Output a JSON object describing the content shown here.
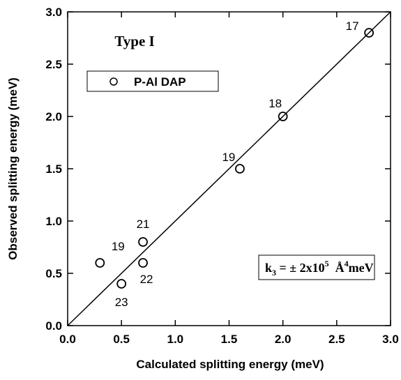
{
  "chart_data": {
    "type": "scatter",
    "x_label": "Calculated splitting energy (meV)",
    "y_label": "Observed splitting energy (meV)",
    "series": [
      {
        "name": "P-Al DAP",
        "color": "#000000",
        "x": [
          0.3,
          0.5,
          0.7,
          0.7,
          1.6,
          2.0,
          2.8
        ],
        "values": [
          0.6,
          0.4,
          0.8,
          0.6,
          1.5,
          2.0,
          2.8
        ],
        "point_labels": [
          "19",
          "23",
          "21",
          "22",
          "19",
          "18",
          "17"
        ]
      }
    ],
    "fit_line": {
      "x": [
        0,
        3
      ],
      "y": [
        0,
        3
      ]
    },
    "annotations": {
      "type_label": "Type I",
      "constant": [
        "k",
        "3",
        " = ± 2x10",
        "5",
        "  Å",
        "4",
        "meV"
      ]
    },
    "xlim": [
      0,
      3
    ],
    "ylim": [
      0,
      3
    ],
    "xticks": [
      {
        "value": 0,
        "label": "0.0"
      },
      0.5,
      {
        "value": 1,
        "label": "1.0"
      },
      1.5,
      {
        "value": 2,
        "label": "2.0"
      },
      2.5,
      {
        "value": 3,
        "label": "3.0"
      }
    ],
    "yticks": [
      {
        "value": 0,
        "label": "0.0"
      },
      0.5,
      {
        "value": 1,
        "label": "1.0"
      },
      1.5,
      {
        "value": 2,
        "label": "2.0"
      },
      2.5,
      {
        "value": 3,
        "label": "3.0"
      }
    ],
    "legend": "upper left",
    "grid": false
  }
}
